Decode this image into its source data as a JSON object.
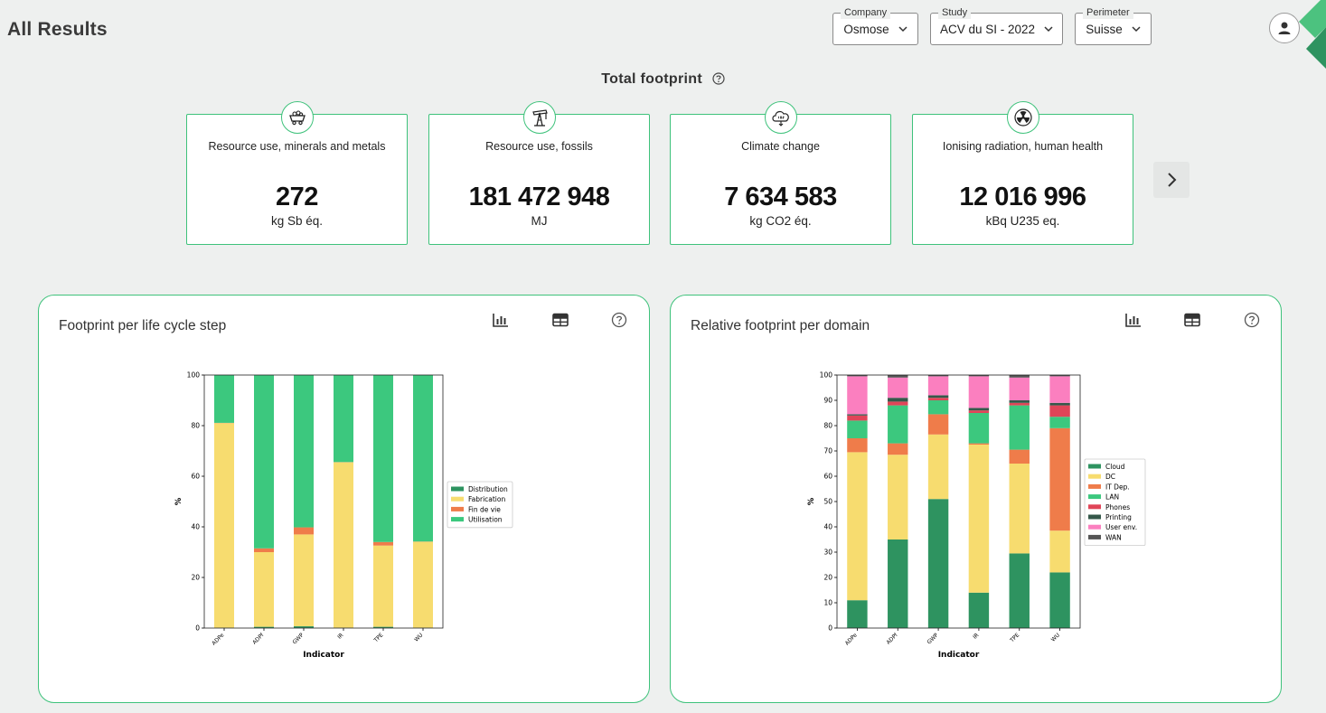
{
  "header": {
    "title": "All Results",
    "filters": [
      {
        "label": "Company",
        "value": "Osmose"
      },
      {
        "label": "Study",
        "value": "ACV du SI - 2022"
      },
      {
        "label": "Perimeter",
        "value": "Suisse"
      }
    ]
  },
  "total_footprint": {
    "title": "Total footprint",
    "cards": [
      {
        "icon": "mining-cart-icon",
        "name": "Resource use, minerals and metals",
        "value": "272",
        "unit": "kg Sb éq."
      },
      {
        "icon": "oil-pump-icon",
        "name": "Resource use, fossils",
        "value": "181 472 948",
        "unit": "MJ"
      },
      {
        "icon": "co2-cloud-icon",
        "name": "Climate change",
        "value": "7 634 583",
        "unit": "kg CO2 éq."
      },
      {
        "icon": "radiation-icon",
        "name": "Ionising radiation, human health",
        "value": "12 016 996",
        "unit": "kBq U235 eq."
      }
    ]
  },
  "colors": {
    "accent": "#3ec27b"
  },
  "panels": [
    {
      "title": "Footprint per life cycle step",
      "chart_data": {
        "type": "bar",
        "stacked": true,
        "categories": [
          "ADPe",
          "ADPf",
          "GWP",
          "IR",
          "TPE",
          "WU"
        ],
        "xlabel": "Indicator",
        "ylabel": "%",
        "ylim": [
          0,
          100
        ],
        "yticks": [
          0,
          20,
          40,
          60,
          80,
          100
        ],
        "legend_position": "right",
        "series": [
          {
            "name": "Distribution",
            "color": "#2e9360",
            "values": [
              0.1,
              0.5,
              0.7,
              0.1,
              0.5,
              0.1
            ]
          },
          {
            "name": "Fabrication",
            "color": "#f7dc6f",
            "values": [
              80.9,
              29.5,
              36.3,
              65.4,
              32.1,
              34.0
            ]
          },
          {
            "name": "Fin de vie",
            "color": "#ef7c4a",
            "values": [
              0.1,
              1.5,
              2.8,
              0.1,
              1.4,
              0.1
            ]
          },
          {
            "name": "Utilisation",
            "color": "#3cc87e",
            "values": [
              18.9,
              68.5,
              60.2,
              34.4,
              66.0,
              65.8
            ]
          }
        ]
      }
    },
    {
      "title": "Relative footprint per domain",
      "chart_data": {
        "type": "bar",
        "stacked": true,
        "categories": [
          "ADPe",
          "ADPf",
          "GWP",
          "IR",
          "TPE",
          "WU"
        ],
        "xlabel": "Indicator",
        "ylabel": "%",
        "ylim": [
          0,
          100
        ],
        "yticks": [
          0,
          10,
          20,
          30,
          40,
          50,
          60,
          70,
          80,
          90,
          100
        ],
        "legend_position": "right",
        "series": [
          {
            "name": "Cloud",
            "color": "#2e9360",
            "values": [
              11,
              35,
              51,
              14,
              29.5,
              22
            ]
          },
          {
            "name": "DC",
            "color": "#f7dc6f",
            "values": [
              58.5,
              33.5,
              25.5,
              58.5,
              35.5,
              16.5
            ]
          },
          {
            "name": "IT Dep.",
            "color": "#ef7c4a",
            "values": [
              5.5,
              4.5,
              8,
              0.5,
              5.5,
              40.5
            ]
          },
          {
            "name": "LAN",
            "color": "#3cc87e",
            "values": [
              7,
              15,
              5.5,
              12,
              17.5,
              4.5
            ]
          },
          {
            "name": "Phones",
            "color": "#e04558",
            "values": [
              2,
              1.5,
              1,
              1,
              1,
              4.5
            ]
          },
          {
            "name": "Printing",
            "color": "#35584a",
            "values": [
              0.5,
              1.5,
              1,
              1,
              1,
              1
            ]
          },
          {
            "name": "User env.",
            "color": "#fb7fbf",
            "values": [
              15,
              8,
              7.5,
              12.5,
              9,
              10.5
            ]
          },
          {
            "name": "WAN",
            "color": "#555555",
            "values": [
              0.5,
              1,
              0.5,
              0.5,
              1,
              0.5
            ]
          }
        ]
      }
    }
  ]
}
